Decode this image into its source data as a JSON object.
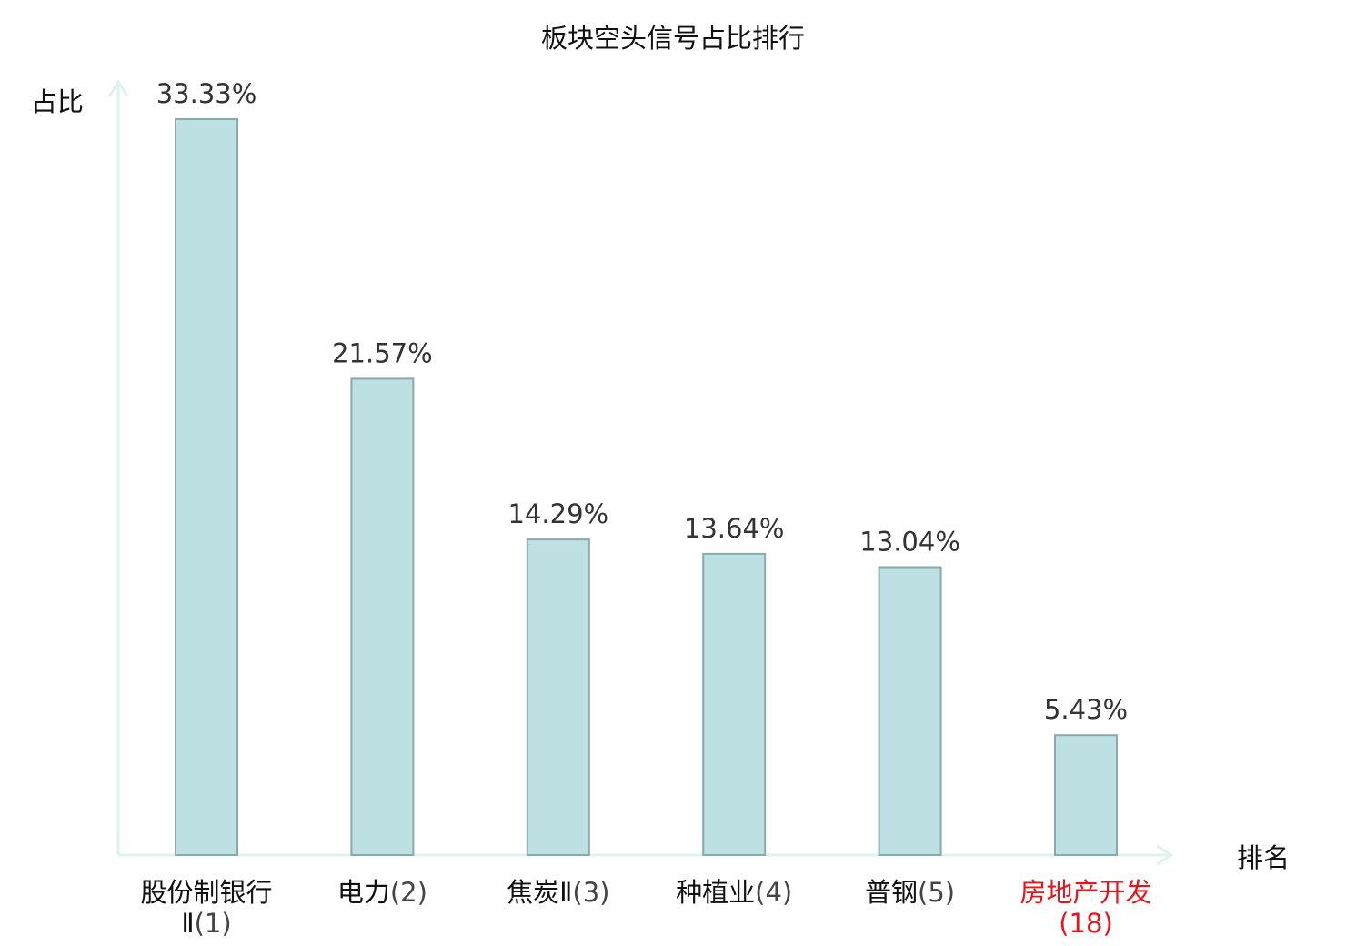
{
  "chart_data": {
    "type": "bar",
    "title": "板块空头信号占比排行",
    "ylabel": "占比",
    "xlabel": "排名",
    "ylim": [
      0,
      35
    ],
    "categories": [
      {
        "name": "股份制银行Ⅱ",
        "rank": "(1)",
        "highlight": false
      },
      {
        "name": "电力",
        "rank": "(2)",
        "highlight": false
      },
      {
        "name": "焦炭Ⅱ",
        "rank": "(3)",
        "highlight": false
      },
      {
        "name": "种植业",
        "rank": "(4)",
        "highlight": false
      },
      {
        "name": "普钢",
        "rank": "(5)",
        "highlight": false
      },
      {
        "name": "房地产开发",
        "rank": "(18)",
        "highlight": true
      }
    ],
    "values": [
      33.33,
      21.57,
      14.29,
      13.64,
      13.04,
      5.43
    ],
    "value_labels": [
      "33.33%",
      "21.57%",
      "14.29%",
      "13.64%",
      "13.04%",
      "5.43%"
    ],
    "colors": {
      "bar_fill": "#bde0e3",
      "bar_stroke": "#8aa9ab",
      "axis": "#dff2ee",
      "highlight_text": "#e8141b"
    }
  }
}
